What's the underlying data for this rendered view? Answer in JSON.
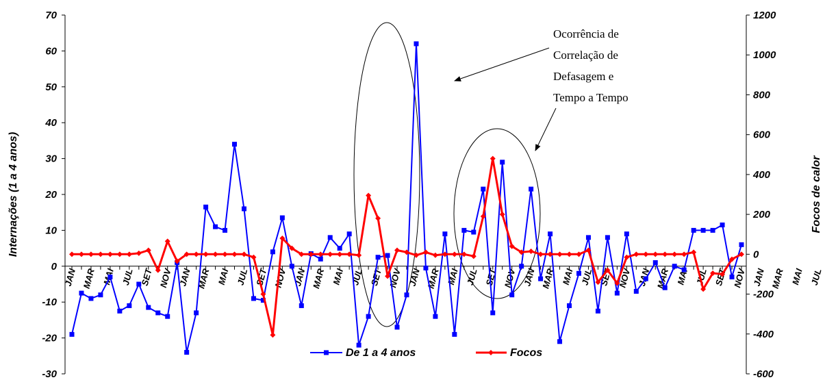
{
  "chart_data": {
    "type": "line",
    "ylabel": "Internações (1 a 4 anos)",
    "y2label": "Focos de calor",
    "ylim": [
      -30,
      70
    ],
    "y2lim": [
      -600,
      1200
    ],
    "yticks": [
      -30,
      -20,
      -10,
      0,
      10,
      20,
      30,
      40,
      50,
      60,
      70
    ],
    "y2ticks": [
      -600,
      -400,
      -200,
      0,
      200,
      400,
      600,
      800,
      1000,
      1200
    ],
    "x_tick_labels": [
      "JAN",
      "MAR",
      "MAI",
      "JUL",
      "SET",
      "NOV",
      "JAN",
      "MAR",
      "MAI",
      "JUL",
      "SET",
      "NOV",
      "JAN",
      "MAR",
      "MAI",
      "JUL",
      "SET",
      "NOV",
      "JAN",
      "MAR",
      "MAI",
      "JUL",
      "SET",
      "NOV",
      "JAN",
      "MAR",
      "MAI",
      "JUL",
      "SET",
      "NOV",
      "JAN",
      "MAR",
      "MAI",
      "JUL",
      "SET",
      "NOV",
      "JAN",
      "MAR",
      "MAI",
      "JUL",
      "SET",
      "NOV"
    ],
    "legend_position": "bottom",
    "grid": false,
    "series": [
      {
        "name": "De 1 a 4 anos",
        "axis": "left",
        "color": "#0000ff",
        "marker": "square",
        "values": [
          -19,
          -7.5,
          -9,
          -8,
          -3,
          -12.5,
          -11,
          -5,
          -11.5,
          -13,
          -14,
          1,
          -24,
          -13,
          16.5,
          11,
          10,
          34,
          16,
          -9,
          -9.5,
          4,
          13.5,
          0,
          -11,
          3.5,
          2,
          8,
          5,
          9,
          -22,
          -14,
          2.5,
          3,
          -17,
          -8,
          62,
          -0.5,
          -14,
          9,
          -19,
          10,
          9.5,
          21.5,
          -13,
          29,
          -8,
          0,
          21.5,
          -3.5,
          9,
          -21,
          -11,
          -2,
          8,
          -12.5,
          8,
          -7.5,
          9,
          -7,
          -3.5,
          1,
          -6,
          0,
          -1,
          10,
          10,
          10,
          11.5,
          -3,
          6
        ]
      },
      {
        "name": "Focos",
        "axis": "right",
        "color": "#ff0000",
        "marker": "diamond",
        "values": [
          0,
          0,
          0,
          0,
          0,
          0,
          0,
          5,
          20,
          -80,
          65,
          -35,
          0,
          0,
          0,
          0,
          0,
          0,
          0,
          -15,
          -200,
          -405,
          80,
          30,
          0,
          0,
          0,
          0,
          0,
          0,
          -5,
          295,
          180,
          -110,
          20,
          10,
          -5,
          10,
          -5,
          0,
          0,
          0,
          -10,
          190,
          480,
          200,
          40,
          10,
          15,
          0,
          0,
          0,
          0,
          0,
          20,
          -140,
          -80,
          -145,
          -15,
          0,
          0,
          0,
          0,
          0,
          0,
          10,
          -175,
          -95,
          -100,
          -25,
          0
        ]
      }
    ],
    "annotations": [
      "Ocorrência de",
      "Correlação de",
      "Defasagem e",
      "Tempo a Tempo"
    ]
  }
}
